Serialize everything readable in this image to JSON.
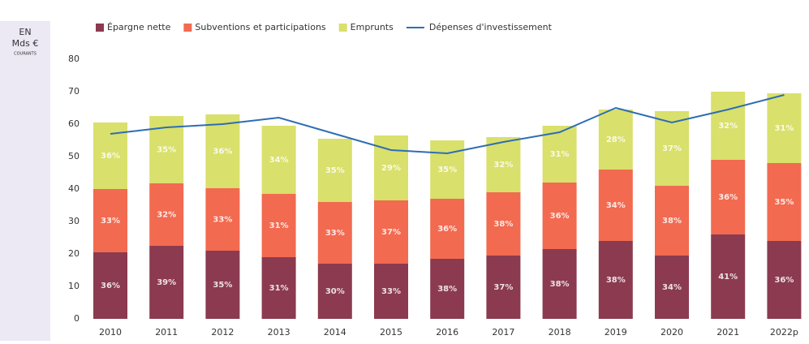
{
  "chart_data": {
    "type": "bar",
    "y_label": "EN",
    "y_label_unit": "Mds €",
    "y_label_note": "COURANTS",
    "categories": [
      "2010",
      "2011",
      "2012",
      "2013",
      "2014",
      "2015",
      "2016",
      "2017",
      "2018",
      "2019",
      "2020",
      "2021",
      "2022p"
    ],
    "stacked": true,
    "series": [
      {
        "name": "Épargne nette",
        "color": "#8b3a50",
        "values": [
          20.5,
          22.5,
          21,
          19,
          17,
          17,
          18.5,
          19.5,
          21.5,
          24,
          19.5,
          26,
          24
        ],
        "labels": [
          "36%",
          "39%",
          "35%",
          "31%",
          "30%",
          "33%",
          "38%",
          "37%",
          "38%",
          "38%",
          "34%",
          "41%",
          "36%"
        ]
      },
      {
        "name": "Subventions et participations",
        "color": "#f26a50",
        "values": [
          19.5,
          19.3,
          19.3,
          19.5,
          19,
          19.5,
          18.5,
          19.5,
          20.5,
          22,
          21.5,
          23,
          24
        ],
        "labels": [
          "33%",
          "32%",
          "33%",
          "31%",
          "33%",
          "37%",
          "36%",
          "38%",
          "36%",
          "34%",
          "38%",
          "36%",
          "35%"
        ]
      },
      {
        "name": "Emprunts",
        "color": "#d9e06c",
        "values": [
          20.5,
          20.7,
          22.7,
          21,
          19.5,
          20,
          18,
          17,
          17.5,
          18.5,
          23,
          21,
          21.5
        ],
        "labels": [
          "36%",
          "35%",
          "36%",
          "34%",
          "35%",
          "29%",
          "35%",
          "32%",
          "31%",
          "28%",
          "37%",
          "32%",
          "31%"
        ]
      },
      {
        "name": "Dépenses d'investissement",
        "color": "#2e6db5",
        "type": "line",
        "values": [
          57,
          59,
          60,
          62,
          57,
          52,
          51,
          54.5,
          57.5,
          65,
          60.5,
          64.5,
          69
        ]
      }
    ],
    "ylim": [
      0,
      80
    ],
    "yticks": [
      0,
      10,
      20,
      30,
      40,
      50,
      60,
      70,
      80
    ],
    "grid": false
  }
}
